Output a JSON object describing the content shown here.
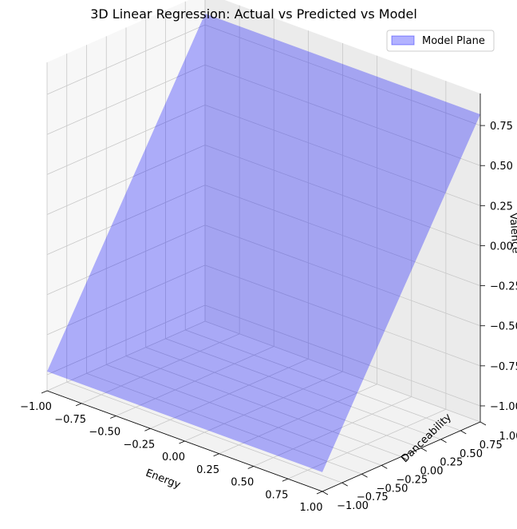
{
  "chart_data": {
    "type": "surface3d",
    "title": "3D Linear Regression: Actual vs Predicted vs Model",
    "xlabel": "Energy",
    "ylabel": "Danceability",
    "zlabel": "Valence",
    "xlim": [
      -1.0,
      1.0
    ],
    "ylim": [
      -1.0,
      1.0
    ],
    "zlim": [
      -1.0,
      0.85
    ],
    "x_ticks": [
      "−1.00",
      "−0.75",
      "−0.50",
      "−0.25",
      "0.00",
      "0.25",
      "0.50",
      "0.75",
      "1.00"
    ],
    "y_ticks": [
      "−1.00",
      "−0.75",
      "−0.50",
      "−0.25",
      "0.00",
      "0.25",
      "0.50",
      "0.75",
      "1.00"
    ],
    "z_ticks": [
      "−1.00",
      "−0.75",
      "−0.50",
      "−0.25",
      "0.00",
      "0.25",
      "0.50",
      "0.75"
    ],
    "grid": true,
    "legend_position": "upper right",
    "series": [
      {
        "name": "Model Plane",
        "color": "#0000ff",
        "opacity": 0.3,
        "corners": [
          {
            "x": -1.0,
            "y": -1.0,
            "z": -0.98
          },
          {
            "x": 1.0,
            "y": -1.0,
            "z": -0.98
          },
          {
            "x": 1.0,
            "y": 1.0,
            "z": 0.82
          },
          {
            "x": -1.0,
            "y": 1.0,
            "z": 0.82
          }
        ]
      }
    ]
  }
}
